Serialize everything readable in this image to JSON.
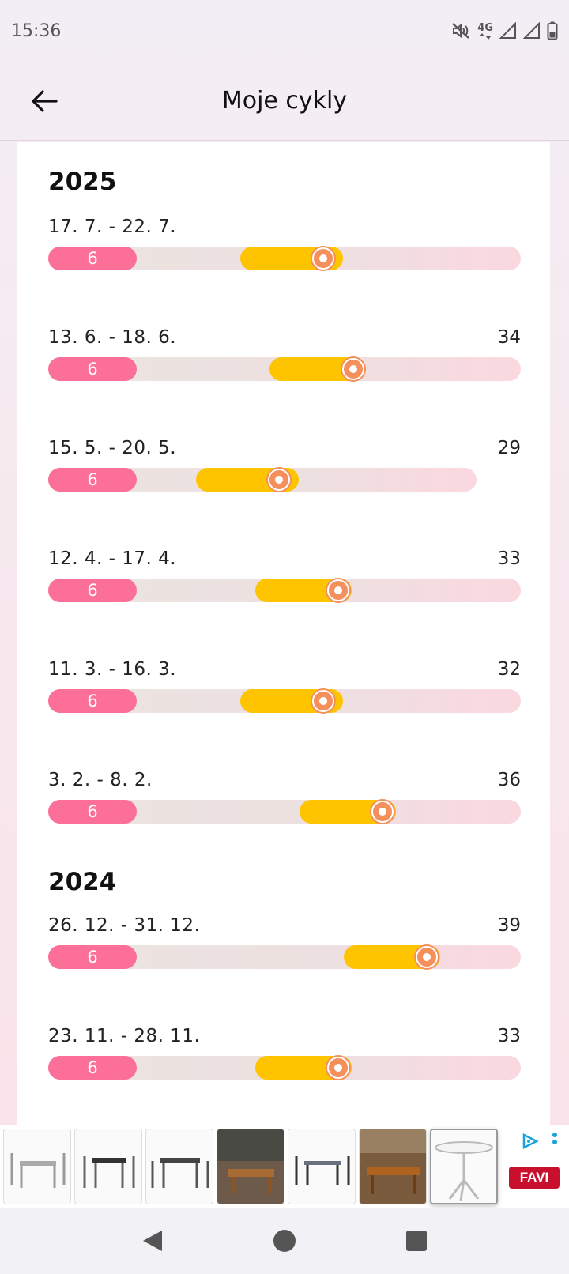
{
  "status_bar": {
    "time": "15:36",
    "network": "4G",
    "icons": [
      "mute-icon",
      "signal-icon",
      "signal-icon",
      "battery-icon"
    ]
  },
  "app_bar": {
    "title": "Moje cykly",
    "back_icon": "arrow-left-icon"
  },
  "colors": {
    "period": "#fb6f98",
    "fertile": "#ffc400",
    "ovulation": "#f58f5b",
    "track": "#ece5e2"
  },
  "years": [
    {
      "year": "2025",
      "cycles": [
        {
          "dates": "17. 7. - 22. 7.",
          "length": "",
          "period_days": "6"
        },
        {
          "dates": "13. 6. - 18. 6.",
          "length": "34",
          "period_days": "6"
        },
        {
          "dates": "15. 5. - 20. 5.",
          "length": "29",
          "period_days": "6"
        },
        {
          "dates": "12. 4. - 17. 4.",
          "length": "33",
          "period_days": "6"
        },
        {
          "dates": "11. 3. - 16. 3.",
          "length": "32",
          "period_days": "6"
        },
        {
          "dates": "3. 2. - 8. 2.",
          "length": "36",
          "period_days": "6"
        }
      ]
    },
    {
      "year": "2024",
      "cycles": [
        {
          "dates": "26. 12. - 31. 12.",
          "length": "39",
          "period_days": "6"
        },
        {
          "dates": "23. 11. - 28. 11.",
          "length": "33",
          "period_days": "6"
        }
      ]
    }
  ],
  "ad": {
    "brand": "FAVI",
    "thumbnails": [
      "garden-furniture-image",
      "garden-furniture-image",
      "garden-furniture-image",
      "garden-furniture-image",
      "garden-furniture-image",
      "garden-furniture-image",
      "round-table-image"
    ]
  },
  "nav_bar": {
    "icons": [
      "back-triangle-icon",
      "home-circle-icon",
      "recents-square-icon"
    ]
  }
}
